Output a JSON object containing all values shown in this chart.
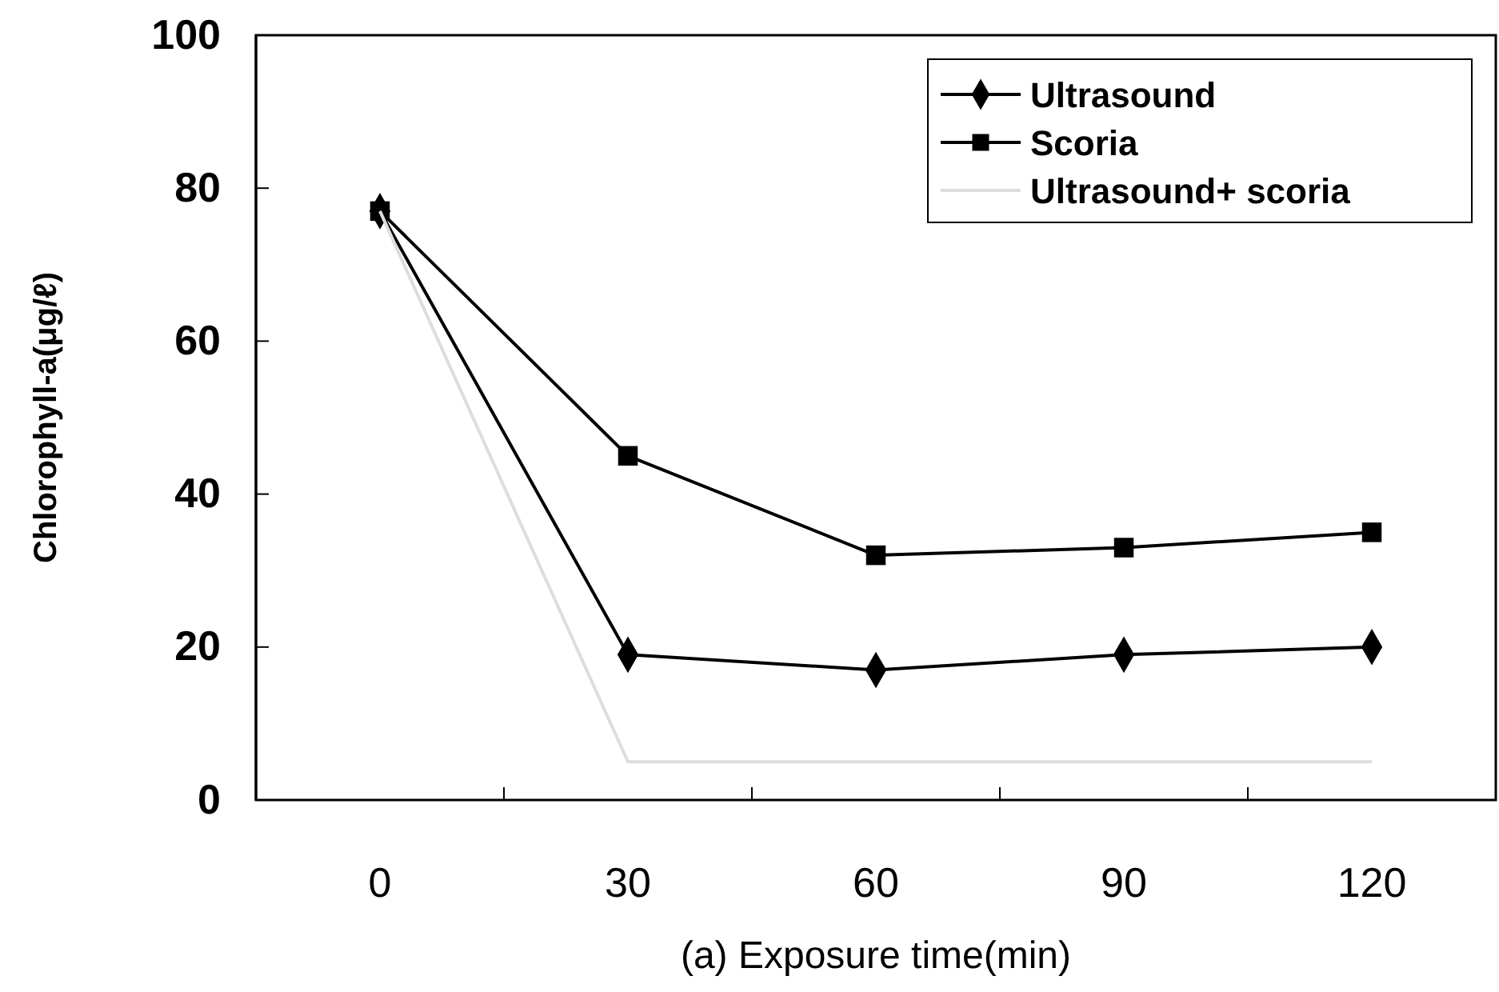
{
  "chart_data": {
    "type": "line",
    "xlabel": "(a) Exposure time(min)",
    "ylabel": "Chlorophyll-a(μg/ℓ)",
    "categories": [
      "0",
      "30",
      "60",
      "90",
      "120"
    ],
    "ylim": [
      0,
      100
    ],
    "yticks": [
      0,
      20,
      40,
      60,
      80,
      100
    ],
    "grid": false,
    "legend": "top right",
    "series": [
      {
        "name": "Ultrasound",
        "color": "#000000",
        "marker": "diamond",
        "values": [
          77,
          19,
          17,
          19,
          20
        ]
      },
      {
        "name": "Scoria",
        "color": "#000000",
        "marker": "square",
        "values": [
          77,
          45,
          32,
          33,
          35
        ]
      },
      {
        "name": "Ultrasound+ scoria",
        "color": "#dddddd",
        "marker": "none",
        "values": [
          77,
          5,
          5,
          5,
          5
        ]
      }
    ]
  }
}
